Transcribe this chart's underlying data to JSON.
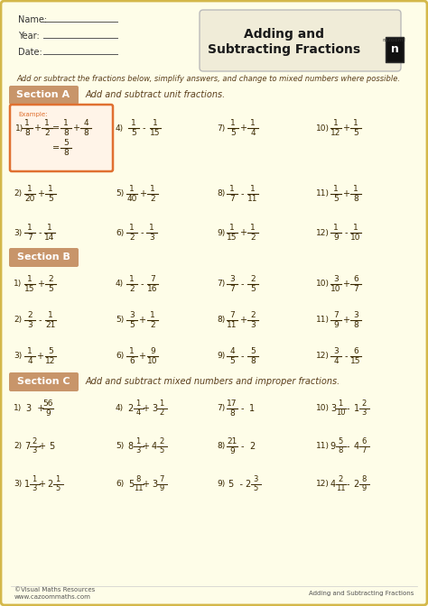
{
  "bg_color": "#FEFDE8",
  "border_color": "#D4B84A",
  "section_bg": "#C8956A",
  "example_border": "#E07030",
  "example_bg": "#FFF4E8",
  "instruction": "Add or subtract the fractions below, simplify answers, and change to mixed numbers where possible.",
  "section_a_label": "Section A",
  "section_a_desc": "Add and subtract unit fractions.",
  "section_b_label": "Section B",
  "section_c_label": "Section C",
  "section_c_desc": "Add and subtract mixed numbers and improper fractions.",
  "footer_left": "©Visual Maths Resources\nwww.cazoommaths.com",
  "footer_right": "Adding and Subtracting Fractions",
  "main_text_color": "#5A3E1B",
  "frac_color": "#3A2800",
  "title_color": "#1A1A1A"
}
